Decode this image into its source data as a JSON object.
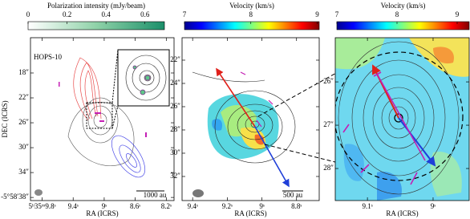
{
  "chart_data": [
    {
      "type": "map",
      "annotations": [
        "HOPS-10",
        "1000 au"
      ],
      "colorbar": {
        "label": "Polarization intensity (mJy/beam)",
        "lim": [
          0,
          0.7
        ],
        "ticks": [
          0,
          0.2,
          0.4,
          0.6
        ],
        "colormap": "greens"
      },
      "xlabel": "RA (ICRS)",
      "ylabel": "DEC (ICRS)",
      "xlim": [
        9.95,
        8.1
      ],
      "xticks": [
        {
          "value": 9.8,
          "label": "5ʰ35ᵐ9.8ˢ"
        },
        {
          "value": 9.4,
          "label": "9.4ˢ"
        },
        {
          "value": 9,
          "label": "9ˢ"
        },
        {
          "value": 8.6,
          "label": "8.6ˢ"
        },
        {
          "value": 8.2,
          "label": "8.2ˢ"
        }
      ],
      "ylim": [
        38.5,
        12.33
      ],
      "yticks": [
        {
          "value": 18,
          "label": "18″"
        },
        {
          "value": 22,
          "label": "22″"
        },
        {
          "value": 26,
          "label": "26″"
        },
        {
          "value": 30,
          "label": "30″"
        },
        {
          "value": 34,
          "label": "34″"
        },
        {
          "value": 38,
          "label": "-5°58′38″"
        }
      ]
    },
    {
      "type": "map",
      "annotations": [
        "500 au"
      ],
      "colorbar": {
        "label": "Velocity (km/s)",
        "lim": [
          7,
          9.03
        ],
        "ticks": [
          7,
          8,
          9
        ],
        "colormap": "jet"
      },
      "xlabel": "RA (ICRS)",
      "xlim": [
        9.461,
        8.669
      ],
      "xticks": [
        {
          "value": 9.4,
          "label": "9.4ˢ"
        },
        {
          "value": 9.2,
          "label": "9.2ˢ"
        },
        {
          "value": 9,
          "label": "9ˢ"
        },
        {
          "value": 8.8,
          "label": "8.8ˢ"
        }
      ],
      "ylim": [
        34.07,
        20.07
      ],
      "yticks": [
        {
          "value": 22,
          "label": "22″"
        },
        {
          "value": 24,
          "label": "24″"
        },
        {
          "value": 26,
          "label": "26″"
        },
        {
          "value": 28,
          "label": "28″"
        },
        {
          "value": 30,
          "label": "30″"
        },
        {
          "value": 32,
          "label": "32″"
        }
      ]
    },
    {
      "type": "map",
      "colorbar": {
        "label": "Velocity (km/s)",
        "lim": [
          7,
          9.2
        ],
        "ticks": [
          7,
          8,
          9
        ],
        "colormap": "jet"
      },
      "xlabel": "RA (ICRS)",
      "xlim": [
        9.149,
        8.945
      ],
      "xticks": [
        {
          "value": 9.1,
          "label": "9.1ˢ"
        },
        {
          "value": 9,
          "label": "9ˢ"
        }
      ],
      "ylim": [
        28.74,
        24.98
      ],
      "yticks": [
        {
          "value": 26,
          "label": "26″"
        },
        {
          "value": 27,
          "label": "27″"
        },
        {
          "value": 28,
          "label": "28″"
        }
      ]
    }
  ]
}
